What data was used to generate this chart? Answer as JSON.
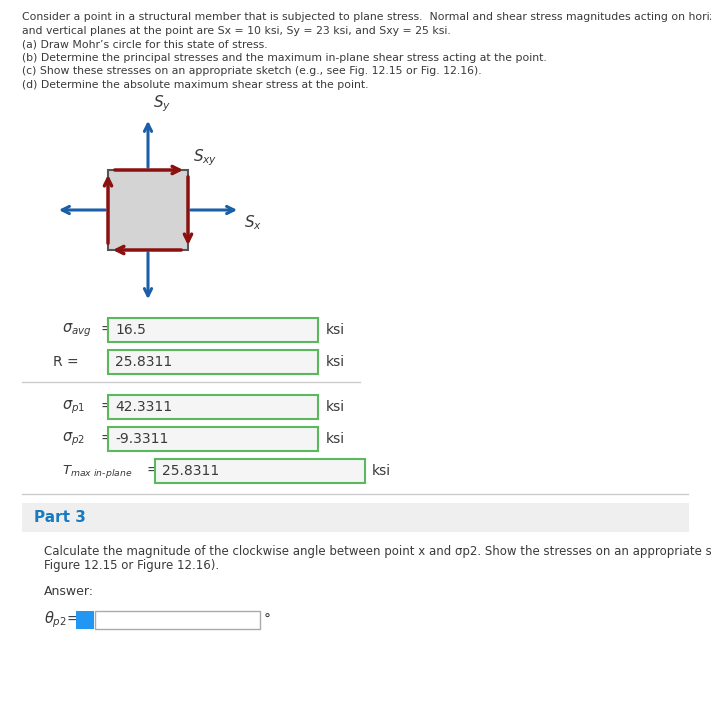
{
  "header_lines": [
    "Consider a point in a structural member that is subjected to plane stress.  Normal and shear stress magnitudes acting on horizontal",
    "and vertical planes at the point are Sx = 10 ksi, Sy = 23 ksi, and Sxy = 25 ksi.",
    "(a) Draw Mohr’s circle for this state of stress.",
    "(b) Determine the principal stresses and the maximum in-plane shear stress acting at the point.",
    "(c) Show these stresses on an appropriate sketch (e.g., see Fig. 12.15 or Fig. 12.16).",
    "(d) Determine the absolute maximum shear stress at the point."
  ],
  "sigma_avg_value": "16.5",
  "R_value": "25.8311",
  "sigma_p1_value": "42.3311",
  "sigma_p2_value": "-9.3311",
  "tmax_value": "25.8311",
  "ksi": "ksi",
  "part3_label": "Part 3",
  "part3_line1": "Calculate the magnitude of the clockwise angle between point x and σp2. Show the stresses on an appropriate sketch (e.g., see",
  "part3_line2": "Figure 12.15 or Figure 12.16).",
  "answer_label": "Answer:",
  "bg_color": "#ffffff",
  "text_color": "#3a3a3a",
  "part3_color": "#1a7abf",
  "part3_bg": "#efefef",
  "input_bg": "#f5f5f5",
  "input_border_green": "#5cb85c",
  "input_border_grey": "#aaaaaa",
  "arrow_blue": "#1a5fa8",
  "arrow_red": "#8b1010",
  "box_fill": "#d4d4d4",
  "box_edge": "#555555",
  "sep_color": "#cccccc",
  "blue_btn": "#2196F3"
}
